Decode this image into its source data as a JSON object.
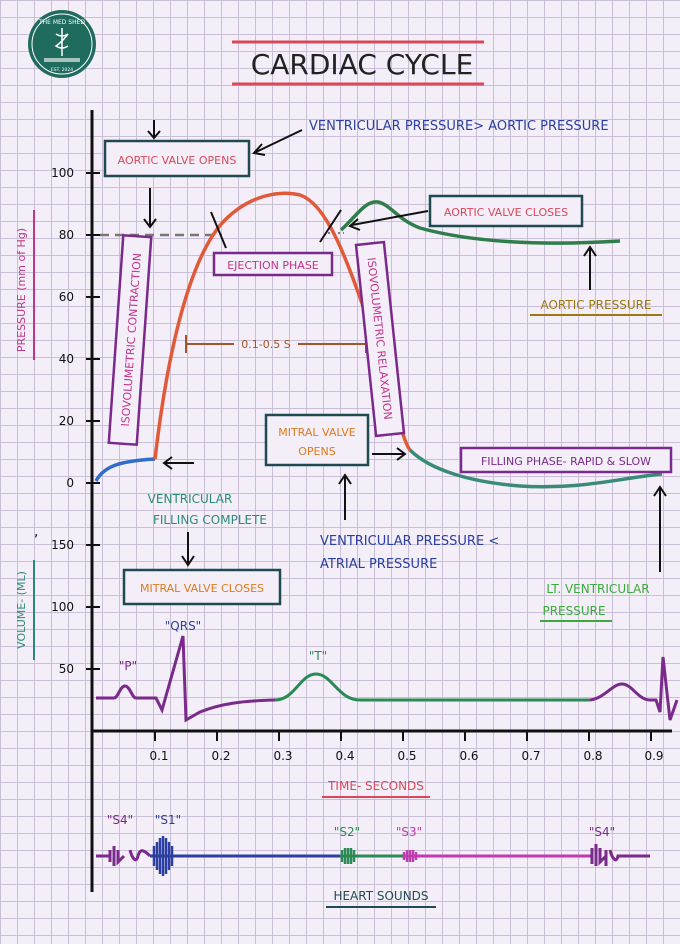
{
  "logo": {
    "line1": "THE MED SHED",
    "line2": "EST. 2024"
  },
  "title": "CARDIAC CYCLE",
  "labels": {
    "vp_gt_ap": "VENTRICULAR PRESSURE> AORTIC PRESSURE",
    "aortic_valve_opens": "AORTIC VALVE OPENS",
    "aortic_valve_closes": "AORTIC VALVE CLOSES",
    "ejection_phase": "EJECTION PHASE",
    "isovolumetric_contraction": "ISOVOLUMETRIC CONTRACTION",
    "isovolumetric_relaxation": "ISOVOLUMETRIC RELAXATION",
    "duration": "0.1-0.5 S",
    "aortic_pressure": "AORTIC PRESSURE",
    "mitral_valve_opens_1": "MITRAL VALVE",
    "mitral_valve_opens_2": "OPENS",
    "filling_phase": "FILLING PHASE- RAPID & SLOW",
    "vent_filling_1": "VENTRICULAR",
    "vent_filling_2": "FILLING COMPLETE",
    "vp_lt_ap_1": "VENTRICULAR PRESSURE <",
    "vp_lt_ap_2": "ATRIAL PRESSURE",
    "mitral_valve_closes": "MITRAL VALVE CLOSES",
    "lv_pressure_1": "LT. VENTRICULAR",
    "lv_pressure_2": "PRESSURE",
    "ecg_p": "\"P\"",
    "ecg_qrs": "\"QRS\"",
    "ecg_t": "\"T\"",
    "time_label": "TIME- SECONDS",
    "heart_sounds": "HEART SOUNDS",
    "s4a": "\"S4\"",
    "s1": "\"S1\"",
    "s2": "\"S2\"",
    "s3": "\"S3\"",
    "s4b": "\"S4\"",
    "comma": ","
  },
  "axes": {
    "pressure_label": "PRESSURE (mm of Hg)",
    "volume_label": "VOLUME- (ML)",
    "pressure_ticks": [
      "100",
      "80",
      "60",
      "40",
      "20",
      "0"
    ],
    "volume_ticks": [
      "150",
      "100",
      "50"
    ],
    "time_ticks": [
      "0.1",
      "0.2",
      "0.3",
      "0.4",
      "0.5",
      "0.6",
      "0.7",
      "0.8",
      "0.9"
    ]
  },
  "colors": {
    "ventricular": "#e05a3a",
    "aortic": "#2f7d4b",
    "filling": "#3a8a7a",
    "ecg": "#2a8a55",
    "heading_blue": "#2a3fa0",
    "pink": "#c0348a",
    "purple": "#7a2a8a",
    "olive": "#9a7a10"
  }
}
